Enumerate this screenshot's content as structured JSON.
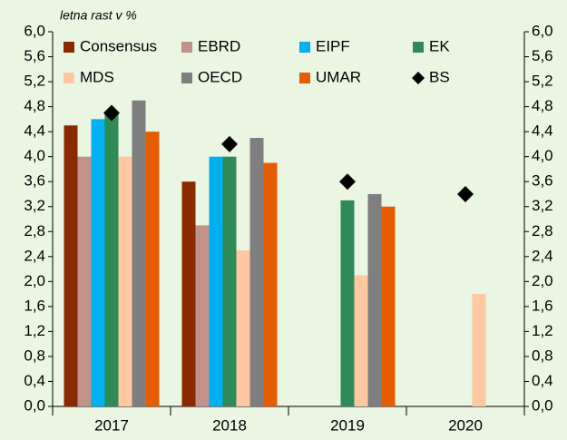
{
  "chart_data": {
    "type": "bar",
    "subtitle": "letna rast v %",
    "categories": [
      "2017",
      "2018",
      "2019",
      "2020"
    ],
    "series": [
      {
        "name": "Consensus",
        "color": "#8b2a00",
        "values": [
          4.5,
          3.6,
          null,
          null
        ]
      },
      {
        "name": "EBRD",
        "color": "#c0928a",
        "values": [
          4.0,
          2.9,
          null,
          null
        ]
      },
      {
        "name": "EIPF",
        "color": "#00b0f0",
        "values": [
          4.6,
          4.0,
          null,
          null
        ]
      },
      {
        "name": "EK",
        "color": "#2e8b57",
        "values": [
          4.7,
          4.0,
          3.3,
          null
        ]
      },
      {
        "name": "MDS",
        "color": "#ffc8a0",
        "values": [
          4.0,
          2.5,
          2.1,
          1.8
        ]
      },
      {
        "name": "OECD",
        "color": "#7f7f7f",
        "values": [
          4.9,
          4.3,
          3.4,
          null
        ]
      },
      {
        "name": "UMAR",
        "color": "#e65c00",
        "values": [
          4.4,
          3.9,
          3.2,
          null
        ]
      },
      {
        "name": "BS",
        "color": "#000000",
        "marker": "diamond",
        "values": [
          4.7,
          4.2,
          3.6,
          3.4
        ]
      }
    ],
    "ylim": [
      0,
      6
    ],
    "yticks": [
      {
        "value": 0,
        "label": "0,0"
      },
      {
        "value": 0.4,
        "label": "0,4"
      },
      {
        "value": 0.8,
        "label": "0,8"
      },
      {
        "value": 1.2,
        "label": "1,2"
      },
      {
        "value": 1.6,
        "label": "1,6"
      },
      {
        "value": 2.0,
        "label": "2,0"
      },
      {
        "value": 2.4,
        "label": "2,4"
      },
      {
        "value": 2.8,
        "label": "2,8"
      },
      {
        "value": 3.2,
        "label": "3,2"
      },
      {
        "value": 3.6,
        "label": "3,6"
      },
      {
        "value": 4.0,
        "label": "4,0"
      },
      {
        "value": 4.4,
        "label": "4,4"
      },
      {
        "value": 4.8,
        "label": "4,8"
      },
      {
        "value": 5.2,
        "label": "5,2"
      },
      {
        "value": 5.6,
        "label": "5,6"
      },
      {
        "value": 6.0,
        "label": "6,0"
      }
    ],
    "grid": false,
    "background": "#eaf5e2"
  }
}
